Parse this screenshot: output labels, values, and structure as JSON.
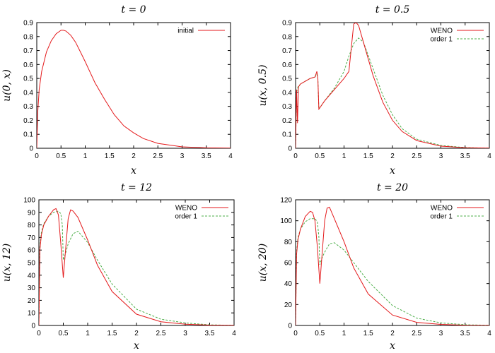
{
  "chart_data": [
    {
      "type": "line",
      "title": "t = 0",
      "xlabel": "x",
      "ylabel": "u(0, x)",
      "xlim": [
        0,
        4
      ],
      "ylim": [
        0,
        0.9
      ],
      "xticks": [
        0,
        0.5,
        1,
        1.5,
        2,
        2.5,
        3,
        3.5,
        4
      ],
      "yticks": [
        0,
        0.1,
        0.2,
        0.3,
        0.4,
        0.5,
        0.6,
        0.7,
        0.8,
        0.9
      ],
      "grid": false,
      "legend": "top-right",
      "series": [
        {
          "name": "initial",
          "color": "#e41a1c",
          "dash": "solid",
          "x": [
            0,
            0.02,
            0.05,
            0.1,
            0.2,
            0.3,
            0.4,
            0.5,
            0.55,
            0.6,
            0.7,
            0.8,
            0.9,
            1.0,
            1.2,
            1.4,
            1.6,
            1.8,
            2.0,
            2.2,
            2.5,
            3.0,
            3.5,
            4.0
          ],
          "y": [
            0,
            0.26,
            0.42,
            0.55,
            0.69,
            0.77,
            0.82,
            0.845,
            0.845,
            0.84,
            0.81,
            0.76,
            0.69,
            0.62,
            0.47,
            0.35,
            0.24,
            0.16,
            0.11,
            0.07,
            0.035,
            0.01,
            0.003,
            0.001
          ]
        }
      ]
    },
    {
      "type": "line",
      "title": "t = 0.5",
      "xlabel": "x",
      "ylabel": "u(x, 0.5)",
      "xlim": [
        0,
        4
      ],
      "ylim": [
        0,
        0.9
      ],
      "xticks": [
        0,
        0.5,
        1,
        1.5,
        2,
        2.5,
        3,
        3.5,
        4
      ],
      "yticks": [
        0,
        0.1,
        0.2,
        0.3,
        0.4,
        0.5,
        0.6,
        0.7,
        0.8,
        0.9
      ],
      "grid": false,
      "legend": "top-right",
      "series": [
        {
          "name": "WENO",
          "color": "#e41a1c",
          "dash": "solid",
          "x": [
            0,
            0.02,
            0.04,
            0.06,
            0.08,
            0.1,
            0.2,
            0.3,
            0.4,
            0.44,
            0.46,
            0.48,
            0.6,
            0.8,
            1.0,
            1.1,
            1.2,
            1.25,
            1.3,
            1.4,
            1.6,
            1.8,
            2.0,
            2.2,
            2.5,
            3.0,
            3.5,
            4.0
          ],
          "y": [
            0,
            0.42,
            0.18,
            0.44,
            0.45,
            0.46,
            0.48,
            0.5,
            0.51,
            0.55,
            0.5,
            0.28,
            0.34,
            0.42,
            0.5,
            0.55,
            0.89,
            0.9,
            0.88,
            0.76,
            0.52,
            0.33,
            0.2,
            0.12,
            0.055,
            0.015,
            0.004,
            0.001
          ]
        },
        {
          "name": "order 1",
          "color": "#4daf4a",
          "dash": "dashed",
          "x": [
            0,
            0.02,
            0.05,
            0.1,
            0.2,
            0.3,
            0.4,
            0.44,
            0.46,
            0.48,
            0.6,
            0.8,
            1.0,
            1.1,
            1.2,
            1.3,
            1.4,
            1.6,
            1.8,
            2.0,
            2.2,
            2.5,
            3.0,
            3.5,
            4.0
          ],
          "y": [
            0,
            0.4,
            0.44,
            0.46,
            0.48,
            0.5,
            0.51,
            0.53,
            0.5,
            0.28,
            0.34,
            0.43,
            0.55,
            0.66,
            0.75,
            0.79,
            0.76,
            0.57,
            0.38,
            0.24,
            0.14,
            0.065,
            0.02,
            0.005,
            0.001
          ]
        }
      ]
    },
    {
      "type": "line",
      "title": "t = 12",
      "xlabel": "x",
      "ylabel": "u(x, 12)",
      "xlim": [
        0,
        4
      ],
      "ylim": [
        0,
        100
      ],
      "xticks": [
        0,
        0.5,
        1,
        1.5,
        2,
        2.5,
        3,
        3.5,
        4
      ],
      "yticks": [
        0,
        10,
        20,
        30,
        40,
        50,
        60,
        70,
        80,
        90,
        100
      ],
      "grid": false,
      "legend": "top-right",
      "series": [
        {
          "name": "WENO",
          "color": "#e41a1c",
          "dash": "solid",
          "x": [
            0,
            0.02,
            0.05,
            0.1,
            0.2,
            0.3,
            0.35,
            0.4,
            0.45,
            0.5,
            0.55,
            0.6,
            0.65,
            0.7,
            0.8,
            1.0,
            1.2,
            1.5,
            2.0,
            2.5,
            3.0,
            3.5,
            4.0
          ],
          "y": [
            0,
            60,
            72,
            80,
            87,
            92,
            93,
            88,
            65,
            38,
            62,
            85,
            92,
            91,
            86,
            68,
            48,
            27,
            9,
            3,
            1,
            0.3,
            0.1
          ]
        },
        {
          "name": "order 1",
          "color": "#4daf4a",
          "dash": "dashed",
          "x": [
            0,
            0.02,
            0.05,
            0.1,
            0.2,
            0.3,
            0.4,
            0.45,
            0.48,
            0.5,
            0.55,
            0.6,
            0.7,
            0.8,
            1.0,
            1.2,
            1.5,
            2.0,
            2.5,
            3.0,
            3.5,
            4.0
          ],
          "y": [
            0,
            62,
            74,
            81,
            87,
            90,
            91,
            89,
            80,
            52,
            58,
            65,
            73,
            75,
            66,
            52,
            33,
            13,
            5,
            2,
            0.5,
            0.1
          ]
        }
      ]
    },
    {
      "type": "line",
      "title": "t = 20",
      "xlabel": "x",
      "ylabel": "u(x, 20)",
      "xlim": [
        0,
        4
      ],
      "ylim": [
        0,
        120
      ],
      "xticks": [
        0,
        0.5,
        1,
        1.5,
        2,
        2.5,
        3,
        3.5,
        4
      ],
      "yticks": [
        0,
        20,
        40,
        60,
        80,
        100,
        120
      ],
      "grid": false,
      "legend": "top-right",
      "series": [
        {
          "name": "WENO",
          "color": "#e41a1c",
          "dash": "solid",
          "x": [
            0,
            0.02,
            0.05,
            0.1,
            0.2,
            0.3,
            0.35,
            0.4,
            0.45,
            0.5,
            0.55,
            0.6,
            0.65,
            0.7,
            0.8,
            1.0,
            1.2,
            1.5,
            2.0,
            2.5,
            3.0,
            3.5,
            4.0
          ],
          "y": [
            0,
            68,
            82,
            92,
            104,
            109,
            108,
            100,
            75,
            40,
            70,
            100,
            112,
            113,
            102,
            80,
            55,
            30,
            10,
            3,
            1,
            0.3,
            0.1
          ]
        },
        {
          "name": "order 1",
          "color": "#4daf4a",
          "dash": "dashed",
          "x": [
            0,
            0.02,
            0.05,
            0.1,
            0.2,
            0.3,
            0.4,
            0.45,
            0.48,
            0.5,
            0.55,
            0.6,
            0.7,
            0.8,
            1.0,
            1.2,
            1.5,
            2.0,
            2.5,
            3.0,
            3.5,
            4.0
          ],
          "y": [
            0,
            70,
            84,
            92,
            99,
            102,
            102,
            99,
            85,
            58,
            65,
            70,
            78,
            79,
            72,
            60,
            42,
            19,
            7,
            2.5,
            0.7,
            0.2
          ]
        }
      ]
    }
  ]
}
